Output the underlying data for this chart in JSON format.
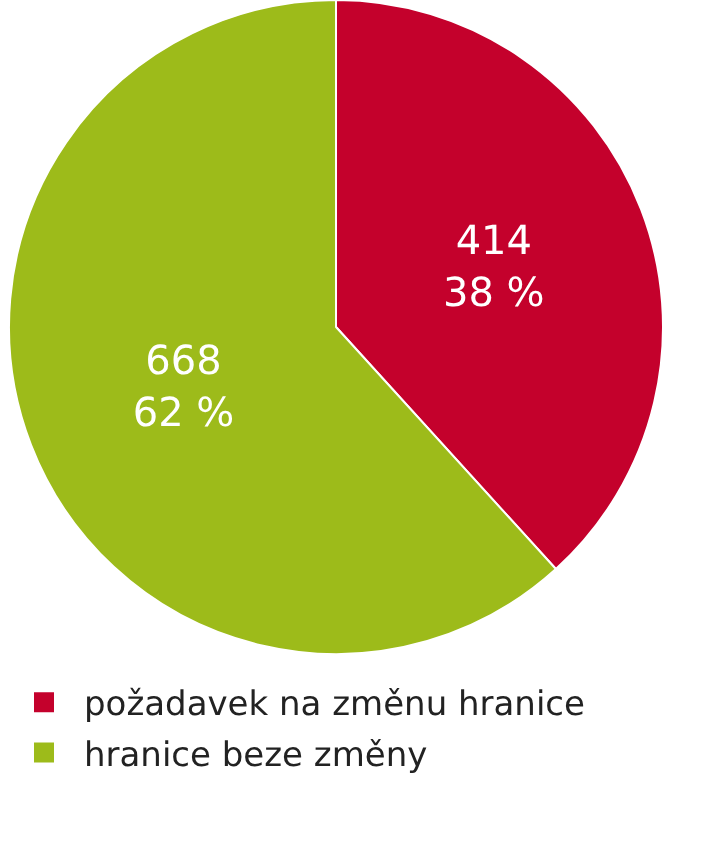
{
  "chart_data": {
    "type": "pie",
    "categories": [
      "požadavek na změnu hranice",
      "hranice beze změny"
    ],
    "values": [
      414,
      668
    ],
    "value_labels": [
      "414\n38 %",
      "668\n62 %"
    ],
    "colors": [
      "#c4012c",
      "#9dbb1a"
    ],
    "legend": "bottom"
  }
}
